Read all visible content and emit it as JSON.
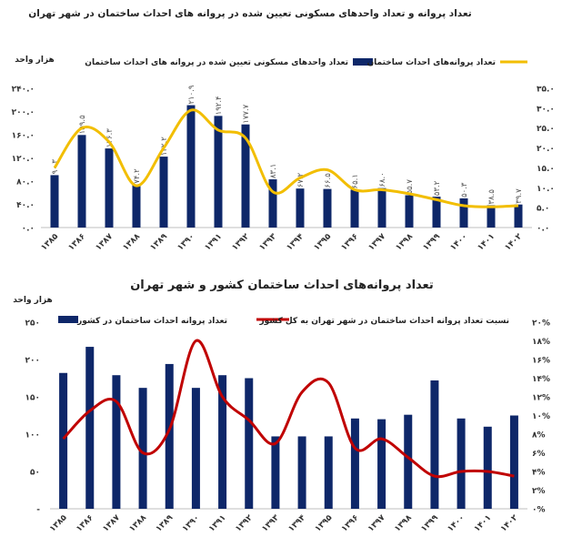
{
  "chart_data": [
    {
      "type": "bar+line",
      "title": "تعداد پروانه و  تعداد واحدهای مسکونی تعیین شده در پروانه های احداث ساختمان در شهر تهران",
      "ylabel_left": "هزار واحد",
      "categories": [
        "۱۳۸۵",
        "۱۳۸۶",
        "۱۳۸۷",
        "۱۳۸۸",
        "۱۳۸۹",
        "۱۳۹۰",
        "۱۳۹۱",
        "۱۳۹۲",
        "۱۳۹۳",
        "۱۳۹۴",
        "۱۳۹۵",
        "۱۳۹۶",
        "۱۳۹۷",
        "۱۳۹۸",
        "۱۳۹۹",
        "۱۴۰۰",
        "۱۴۰۱",
        "۱۴۰۲"
      ],
      "left_ticks": [
        "۰.۰",
        "۴۰.۰",
        "۸۰.۰",
        "۱۲۰.۰",
        "۱۶۰.۰",
        "۲۰۰.۰",
        "۲۴۰.۰"
      ],
      "right_ticks": [
        "۰.۰",
        "۵.۰",
        "۱۰.۰",
        "۱۵.۰",
        "۲۰.۰",
        "۲۵.۰",
        "۳۰.۰",
        "۳۵.۰"
      ],
      "ylim_left": [
        0,
        240
      ],
      "ylim_right": [
        0,
        35
      ],
      "series": [
        {
          "name": "تعداد واحدهای مسکونی تعیین شده در پروانه های احداث ساختمان",
          "kind": "bar",
          "axis": "left",
          "color": "#0e2769",
          "values": [
            90.3,
            159.5,
            136.3,
            74.2,
            122.2,
            210.9,
            192.4,
            177.7,
            83.1,
            67.2,
            66.5,
            65.1,
            68.0,
            55.7,
            53.2,
            50.3,
            38.5,
            39.7
          ],
          "labels": [
            "۹۰.۳",
            "۱۵۹.۵",
            "۱۳۶.۳",
            "۷۴.۲",
            "۱۲۲.۲",
            "۲۱۰.۹",
            "۱۹۲.۴",
            "۱۷۷.۷",
            "۸۳.۱",
            "۶۷.۲",
            "۶۶.۵",
            "۶۵.۱",
            "۶۸.۰",
            "۵۵.۷",
            "۵۳.۲",
            "۵۰.۳",
            "۳۸.۵",
            "۳۹.۷"
          ]
        },
        {
          "name": "تعداد پروانه‌های احداث ساختمان",
          "kind": "line",
          "axis": "right",
          "color": "#f2be00",
          "values": [
            15.0,
            25.0,
            21.5,
            10.5,
            20.0,
            29.5,
            24.5,
            22.5,
            9.0,
            12.5,
            14.5,
            9.5,
            9.5,
            8.5,
            7.0,
            5.5,
            5.2,
            5.5
          ]
        }
      ]
    },
    {
      "type": "bar+line",
      "title": "تعداد پروانه‌های احداث ساختمان کشور و شهر تهران",
      "ylabel_left": "هزار واحد",
      "categories": [
        "۱۳۸۵",
        "۱۳۸۶",
        "۱۳۸۷",
        "۱۳۸۸",
        "۱۳۸۹",
        "۱۳۹۰",
        "۱۳۹۱",
        "۱۳۹۲",
        "۱۳۹۳",
        "۱۳۹۴",
        "۱۳۹۵",
        "۱۳۹۶",
        "۱۳۹۷",
        "۱۳۹۸",
        "۱۳۹۹",
        "۱۴۰۰",
        "۱۴۰۱",
        "۱۴۰۲"
      ],
      "left_ticks": [
        "-",
        "۵۰",
        "۱۰۰",
        "۱۵۰",
        "۲۰۰",
        "۲۵۰"
      ],
      "right_ticks": [
        "۰%",
        "۲%",
        "۴%",
        "۶%",
        "۸%",
        "۱۰%",
        "۱۲%",
        "۱۴%",
        "۱۶%",
        "۱۸%",
        "۲۰%"
      ],
      "ylim_left": [
        0,
        250
      ],
      "ylim_right": [
        0,
        20
      ],
      "series": [
        {
          "name": "تعداد پروانه احداث ساختمان در کشور",
          "kind": "bar",
          "axis": "left",
          "color": "#0e2769",
          "values": [
            182,
            217,
            179,
            162,
            194,
            162,
            179,
            175,
            97,
            97,
            97,
            121,
            120,
            126,
            172,
            121,
            110,
            125
          ]
        },
        {
          "name": "نسبت تعداد پروانه احداث ساختمان در شهر تهران به کل کشور",
          "kind": "line",
          "axis": "right",
          "color": "#c00000",
          "values": [
            7.5,
            10.5,
            11.5,
            6.0,
            8.5,
            18.0,
            12.0,
            9.5,
            7.0,
            12.5,
            13.5,
            6.5,
            7.5,
            5.5,
            3.5,
            4.0,
            4.0,
            3.5
          ]
        }
      ]
    }
  ]
}
